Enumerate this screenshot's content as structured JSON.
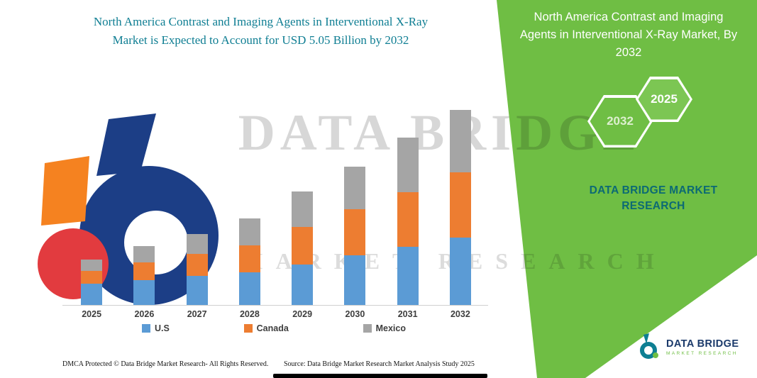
{
  "page": {
    "background": "#ffffff",
    "accent_green": "#6fbe44",
    "teal": "#0f7e93"
  },
  "left_panel": {
    "title": "North America Contrast and Imaging Agents in Interventional X-Ray Market is Expected to Account for USD 5.05 Billion by 2032"
  },
  "right_panel": {
    "title": "North America Contrast and Imaging Agents in Interventional X-Ray Market, By 2032",
    "hexagons": [
      "2032",
      "2025"
    ],
    "brand_text": "DATA BRIDGE MARKET RESEARCH"
  },
  "watermark": {
    "line1": "DATA BRIDGE",
    "line2": "MARKET RESEARCH"
  },
  "corner_logo": {
    "name": "DATA BRIDGE",
    "subtitle": "MARKET RESEARCH"
  },
  "footer": {
    "dmca": "DMCA Protected © Data Bridge Market Research-  All Rights Reserved.",
    "source": "Source: Data Bridge Market Research  Market Analysis Study 2025"
  },
  "chart_data": {
    "type": "bar",
    "stacked": true,
    "title": "North America Contrast and Imaging Agents in Interventional X-Ray Market is Expected to Account for USD 5.05 Billion by 2032",
    "unit": "USD Billion",
    "xlabel": "",
    "ylabel": "",
    "ylim": [
      0,
      5.5
    ],
    "grid": false,
    "legend_position": "bottom",
    "total_2032": 5.05,
    "categories": [
      "2025",
      "2026",
      "2027",
      "2028",
      "2029",
      "2030",
      "2031",
      "2032"
    ],
    "series": [
      {
        "name": "U.S",
        "color": "#5b9bd5",
        "values": [
          0.55,
          0.65,
          0.75,
          0.85,
          1.05,
          1.28,
          1.5,
          1.75
        ]
      },
      {
        "name": "Canada",
        "color": "#ed7d31",
        "values": [
          0.33,
          0.45,
          0.57,
          0.7,
          0.97,
          1.2,
          1.43,
          1.68
        ]
      },
      {
        "name": "Mexico",
        "color": "#a5a5a5",
        "values": [
          0.3,
          0.42,
          0.52,
          0.7,
          0.93,
          1.1,
          1.4,
          1.62
        ]
      }
    ]
  }
}
